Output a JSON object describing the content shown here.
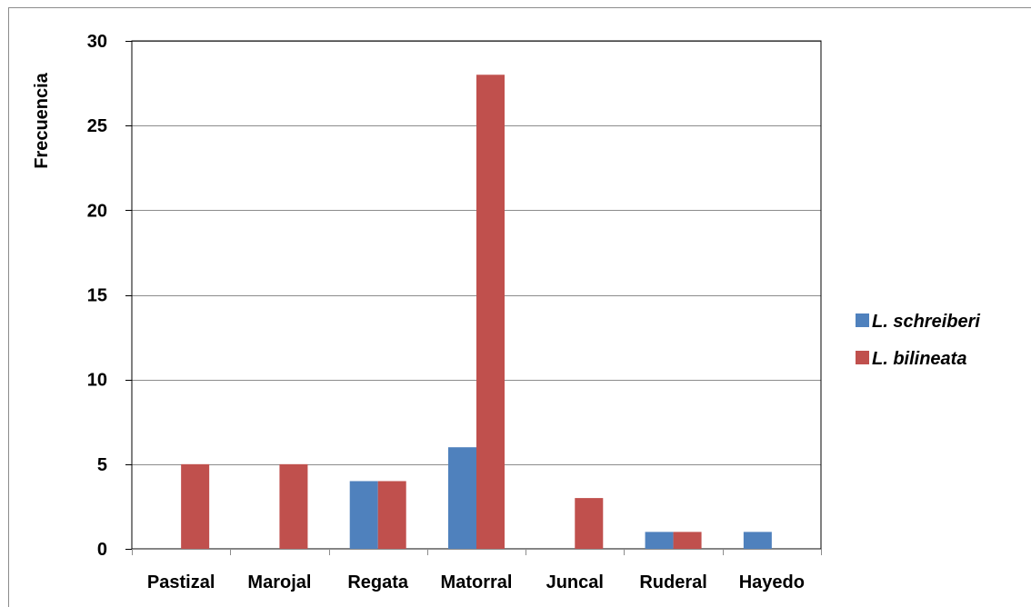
{
  "chart_data": {
    "type": "bar",
    "title": "",
    "xlabel": "",
    "ylabel": "Frecuencia",
    "categories": [
      "Pastizal",
      "Marojal",
      "Regata",
      "Matorral",
      "Juncal",
      "Ruderal",
      "Hayedo"
    ],
    "series": [
      {
        "name": "L. schreiberi",
        "color": "#4F81BD",
        "values": [
          0,
          0,
          4,
          6,
          0,
          1,
          1
        ]
      },
      {
        "name": "L. bilineata",
        "color": "#C0504D",
        "values": [
          5,
          5,
          4,
          28,
          3,
          1,
          0
        ]
      }
    ],
    "ylim": [
      0,
      30
    ],
    "yticks": [
      0,
      5,
      10,
      15,
      20,
      25,
      30
    ],
    "grid": true,
    "legend": "right"
  }
}
